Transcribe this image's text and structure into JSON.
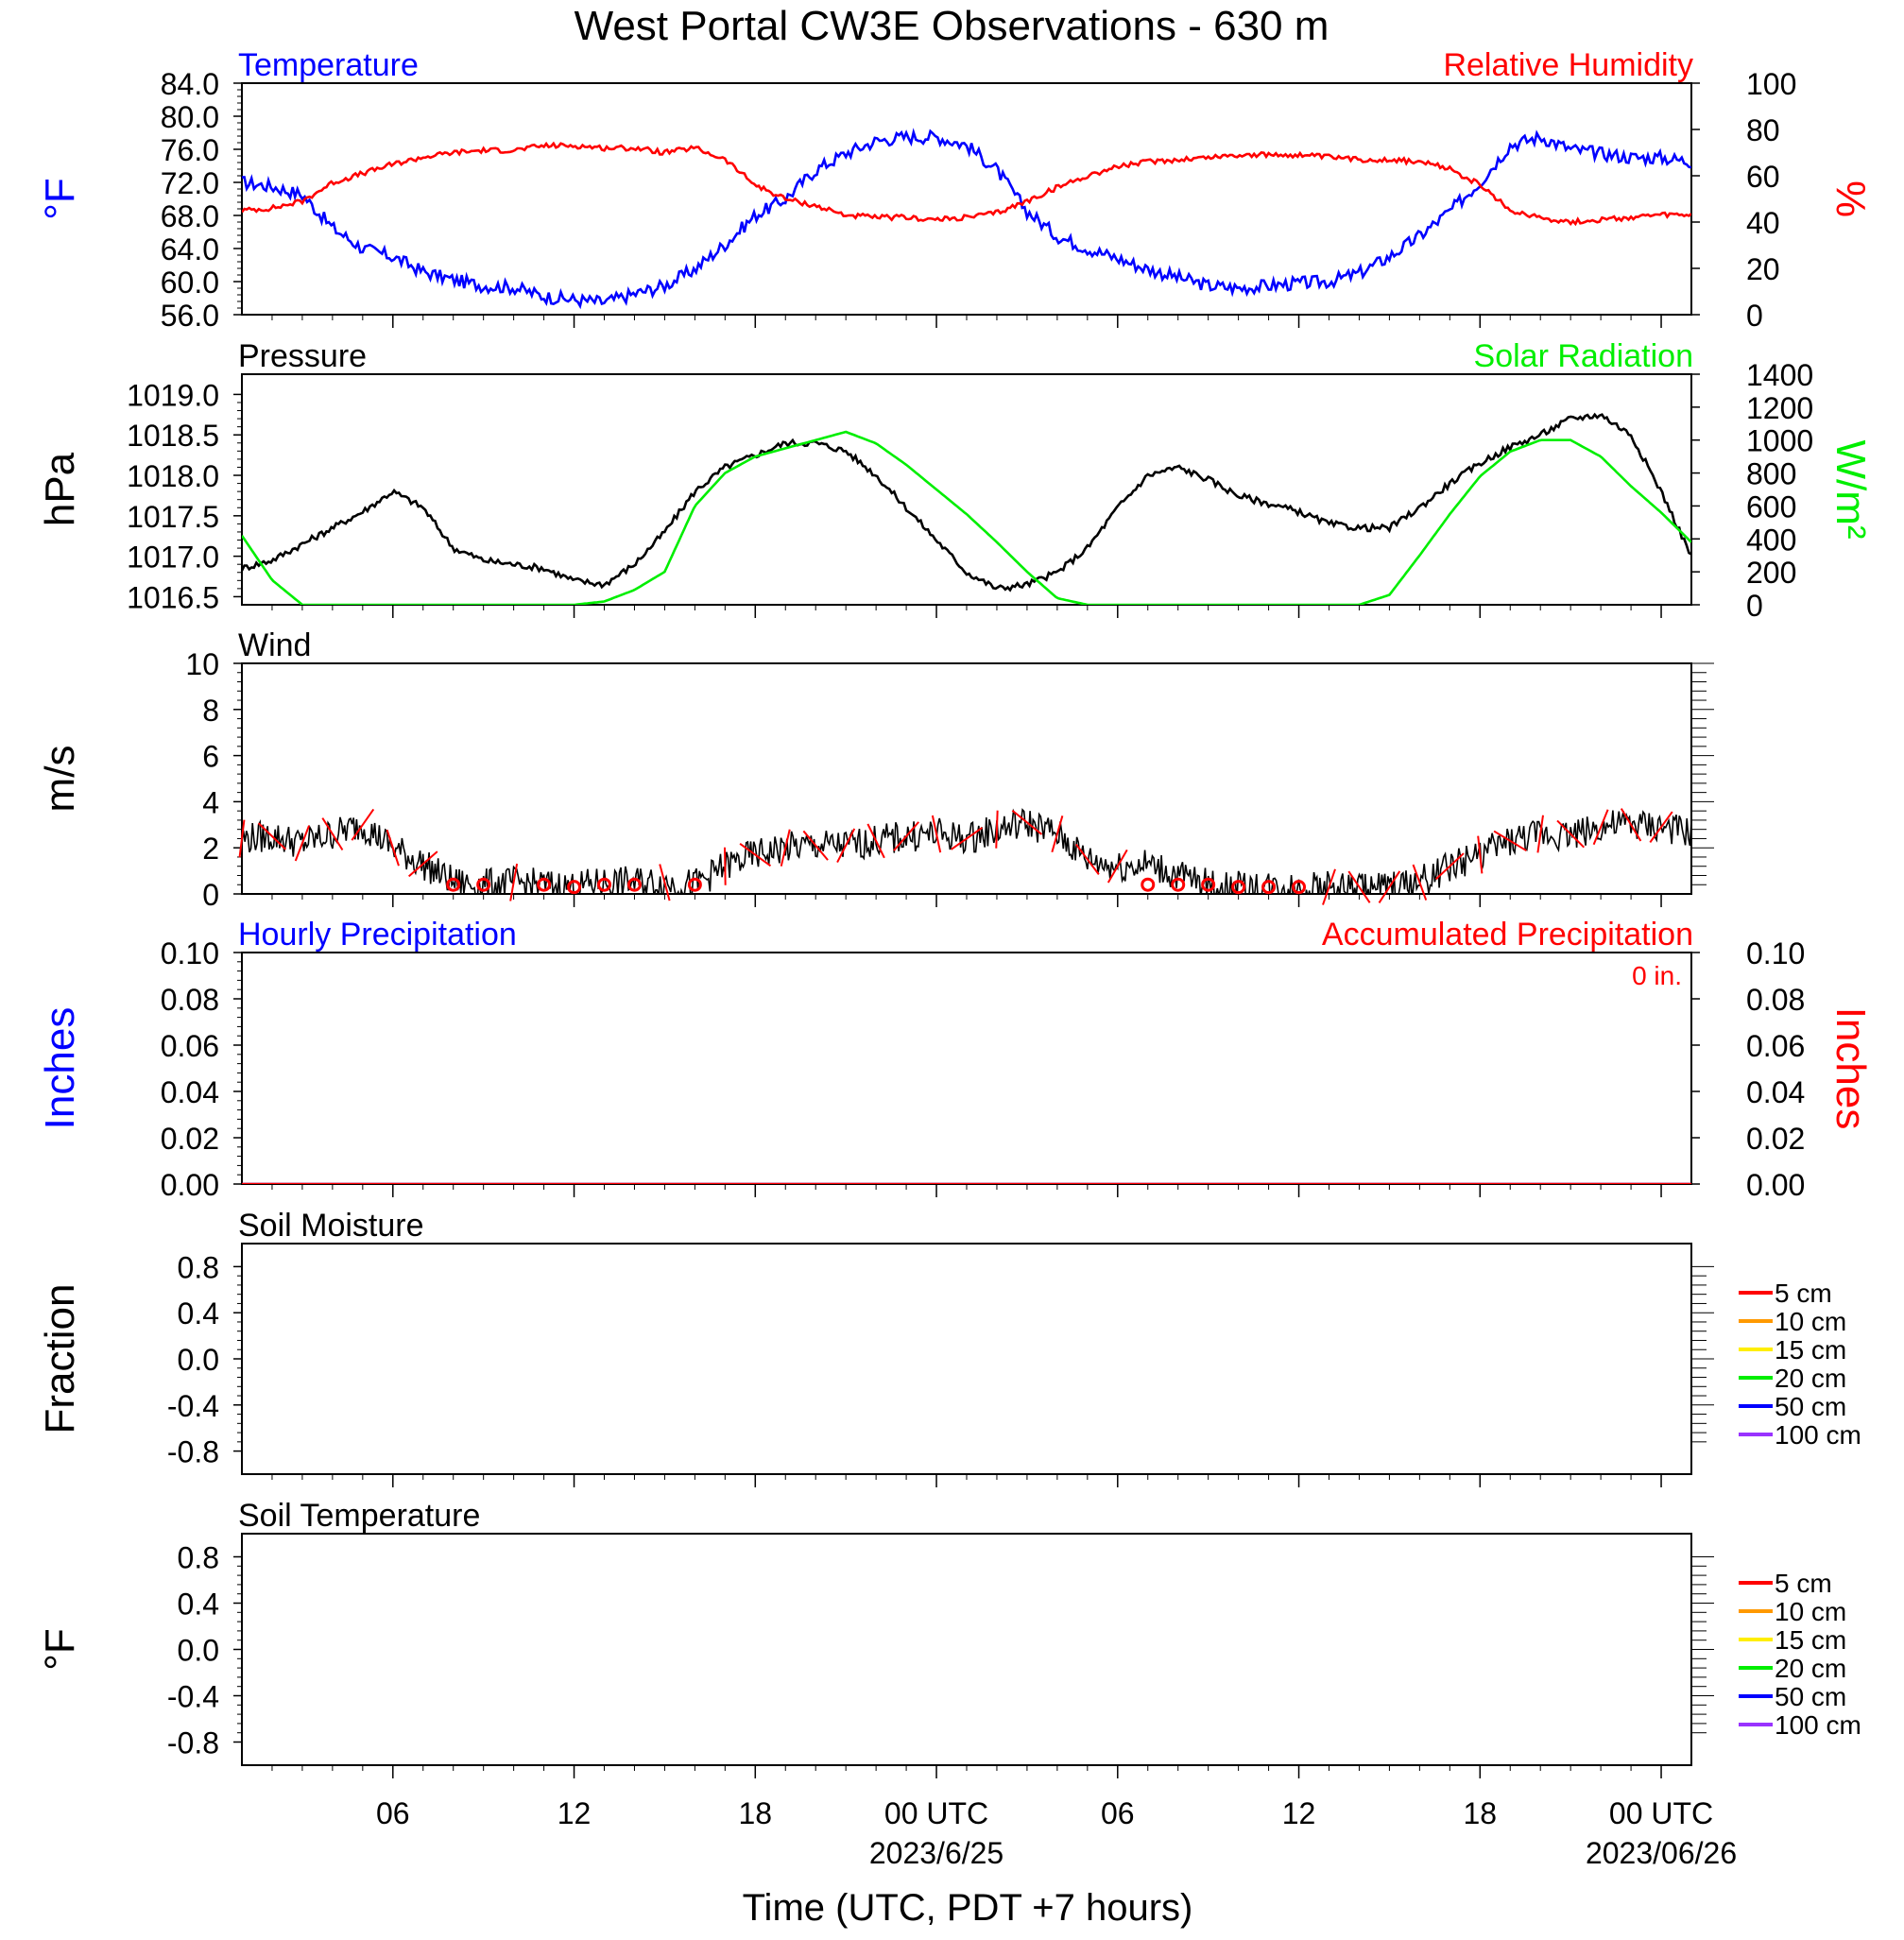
{
  "title": "West Portal CW3E Observations - 630 m",
  "xlabel": "Time (UTC, PDT +7 hours)",
  "x_axis": {
    "tick_hours": [
      6,
      12,
      18,
      24,
      30,
      36,
      42,
      48
    ],
    "tick_labels": [
      "06",
      "12",
      "18",
      "00 UTC",
      "06",
      "12",
      "18",
      "00 UTC"
    ],
    "date_labels": [
      {
        "hour": 24,
        "text": "2023/6/25"
      },
      {
        "hour": 48,
        "text": "2023/06/26"
      }
    ],
    "xlim_hours": [
      1,
      49
    ]
  },
  "colors": {
    "temperature": "#0000ff",
    "humidity": "#ff0000",
    "pressure": "#000000",
    "solar": "#00ee00",
    "wind_speed": "#000000",
    "wind_barb": "#ff0000",
    "hourly_precip": "#0000ff",
    "accum_precip": "#ff0000"
  },
  "chart_data": [
    {
      "id": "temp_rh",
      "type": "line",
      "title_left": "Temperature",
      "title_right": "Relative Humidity",
      "ylabel_left": "°F",
      "ylabel_right": "%",
      "ylim_left": [
        56,
        84
      ],
      "ylim_right": [
        0,
        100
      ],
      "ticks_left": [
        "84.0",
        "80.0",
        "76.0",
        "72.0",
        "68.0",
        "64.0",
        "60.0",
        "56.0"
      ],
      "ticks_right": [
        "100",
        "80",
        "60",
        "40",
        "20",
        "0"
      ],
      "series": [
        {
          "name": "Temperature",
          "axis": "left",
          "x": [
            1,
            2,
            3,
            4,
            5,
            6,
            7,
            8,
            9,
            10,
            11,
            12,
            13,
            14,
            15,
            16,
            17,
            18,
            19,
            20,
            21,
            22,
            23,
            24,
            25,
            26,
            27,
            28,
            29,
            30,
            31,
            32,
            33,
            34,
            35,
            36,
            37,
            38,
            39,
            40,
            41,
            42,
            43,
            44,
            45,
            46,
            47,
            48,
            49
          ],
          "values": [
            72.0,
            71.5,
            70.5,
            66.5,
            64.0,
            63.0,
            61.2,
            60.2,
            59.5,
            59.3,
            58.2,
            57.8,
            57.5,
            58.5,
            59.5,
            61.5,
            64.5,
            68.0,
            70.0,
            73.5,
            75.5,
            77.0,
            77.5,
            77.5,
            76.5,
            73.5,
            68.5,
            65.5,
            64.0,
            62.8,
            61.5,
            60.5,
            59.5,
            59.2,
            59.5,
            59.8,
            60.0,
            61.0,
            63.0,
            65.5,
            68.5,
            72.0,
            76.5,
            77.5,
            76.0,
            75.5,
            75.0,
            75.0,
            74.5
          ]
        },
        {
          "name": "Relative Humidity",
          "axis": "right",
          "x": [
            1,
            2,
            3,
            4,
            5,
            6,
            7,
            8,
            9,
            10,
            11,
            12,
            13,
            14,
            15,
            16,
            17,
            18,
            19,
            20,
            21,
            22,
            23,
            24,
            25,
            26,
            27,
            28,
            29,
            30,
            31,
            32,
            33,
            34,
            35,
            36,
            37,
            38,
            39,
            40,
            41,
            42,
            43,
            44,
            45,
            46,
            47,
            48,
            49
          ],
          "values": [
            45,
            46,
            49,
            57,
            61,
            65,
            68,
            70,
            71,
            71,
            73,
            73,
            72,
            72,
            70,
            72,
            67,
            56,
            50,
            47,
            43,
            42,
            42,
            41,
            42,
            44,
            49,
            55,
            60,
            64,
            66,
            67,
            68,
            69,
            69,
            69,
            68,
            67,
            67,
            66,
            63,
            56,
            45,
            42,
            40,
            41,
            42,
            43,
            43
          ]
        }
      ]
    },
    {
      "id": "pressure_solar",
      "type": "line",
      "title_left": "Pressure",
      "title_right": "Solar Radiation",
      "ylabel_left": "hPa",
      "ylabel_right": "W/m²",
      "ylim_left": [
        1016.4,
        1019.25
      ],
      "ylim_right": [
        0,
        1400
      ],
      "ticks_left": [
        "1019.0",
        "1018.5",
        "1018.0",
        "1017.5",
        "1017.0",
        "1016.5"
      ],
      "ticks_right": [
        "1400",
        "1200",
        "1000",
        "800",
        "600",
        "400",
        "200",
        "0"
      ],
      "series": [
        {
          "name": "Pressure",
          "axis": "left",
          "x": [
            1,
            2,
            3,
            4,
            5,
            6,
            7,
            8,
            9,
            10,
            11,
            12,
            13,
            14,
            15,
            16,
            17,
            18,
            19,
            20,
            21,
            22,
            23,
            24,
            25,
            26,
            27,
            28,
            29,
            30,
            31,
            32,
            33,
            34,
            35,
            36,
            37,
            38,
            39,
            40,
            41,
            42,
            43,
            44,
            45,
            46,
            47,
            48,
            49
          ],
          "values": [
            1016.85,
            1016.95,
            1017.15,
            1017.35,
            1017.55,
            1017.8,
            1017.6,
            1017.1,
            1016.95,
            1016.9,
            1016.85,
            1016.7,
            1016.65,
            1016.9,
            1017.3,
            1017.8,
            1018.1,
            1018.25,
            1018.4,
            1018.4,
            1018.3,
            1018.0,
            1017.6,
            1017.2,
            1016.8,
            1016.6,
            1016.65,
            1016.8,
            1017.1,
            1017.6,
            1018.0,
            1018.1,
            1017.95,
            1017.75,
            1017.65,
            1017.55,
            1017.4,
            1017.35,
            1017.35,
            1017.6,
            1017.9,
            1018.15,
            1018.35,
            1018.5,
            1018.7,
            1018.75,
            1018.5,
            1017.8,
            1017.0
          ]
        },
        {
          "name": "Solar Radiation",
          "axis": "right",
          "x": [
            1,
            2,
            3,
            4,
            5,
            6,
            7,
            8,
            9,
            10,
            11,
            12,
            13,
            14,
            15,
            16,
            17,
            18,
            19,
            20,
            21,
            22,
            23,
            24,
            25,
            26,
            27,
            28,
            29,
            30,
            31,
            32,
            33,
            34,
            35,
            36,
            37,
            38,
            39,
            40,
            41,
            42,
            43,
            44,
            45,
            46,
            47,
            48,
            49
          ],
          "values": [
            420,
            150,
            0,
            0,
            0,
            0,
            0,
            0,
            0,
            0,
            0,
            0,
            20,
            90,
            200,
            600,
            800,
            900,
            950,
            1000,
            1050,
            980,
            850,
            700,
            550,
            380,
            200,
            40,
            0,
            0,
            0,
            0,
            0,
            0,
            0,
            0,
            0,
            0,
            60,
            300,
            550,
            780,
            930,
            1000,
            1000,
            900,
            720,
            560,
            380
          ]
        }
      ]
    },
    {
      "id": "wind",
      "type": "line",
      "title_left": "Wind",
      "ylabel_left": "m/s",
      "ylim_left": [
        0,
        10
      ],
      "ticks_left": [
        "10",
        "8",
        "6",
        "4",
        "2",
        "0"
      ],
      "series": [
        {
          "name": "Wind",
          "axis": "left",
          "x": [
            1,
            2,
            3,
            4,
            5,
            6,
            7,
            8,
            9,
            10,
            11,
            12,
            13,
            14,
            15,
            16,
            17,
            18,
            19,
            20,
            21,
            22,
            23,
            24,
            25,
            26,
            27,
            28,
            29,
            30,
            31,
            32,
            33,
            34,
            35,
            36,
            37,
            38,
            39,
            40,
            41,
            42,
            43,
            44,
            45,
            46,
            47,
            48,
            49
          ],
          "values": [
            2.4,
            2.5,
            2.2,
            2.6,
            3.0,
            2.0,
            1.3,
            0.5,
            0.4,
            0.5,
            0.4,
            0.3,
            0.5,
            0.5,
            0.5,
            0.4,
            1.2,
            1.7,
            2.0,
            2.1,
            2.1,
            2.3,
            2.5,
            2.6,
            2.4,
            2.8,
            3.1,
            2.6,
            1.5,
            1.2,
            1.3,
            0.8,
            0.4,
            0.3,
            0.3,
            0.3,
            0.3,
            0.3,
            0.3,
            0.5,
            1.2,
            1.7,
            2.3,
            2.6,
            2.6,
            2.9,
            3.0,
            2.9,
            2.6
          ]
        }
      ],
      "calm_markers_hours": [
        8,
        9,
        11,
        12,
        13,
        14,
        16,
        31,
        32,
        33,
        34,
        35,
        36
      ]
    },
    {
      "id": "precip",
      "type": "line",
      "title_left": "Hourly Precipitation",
      "title_right": "Accumulated Precipitation",
      "annotation": "0 in.",
      "ylabel_left": "Inches",
      "ylabel_right": "Inches",
      "ylim_left": [
        0,
        0.1
      ],
      "ylim_right": [
        0,
        0.1
      ],
      "ticks_left": [
        "0.10",
        "0.08",
        "0.06",
        "0.04",
        "0.02",
        "0.00"
      ],
      "ticks_right": [
        "0.10",
        "0.08",
        "0.06",
        "0.04",
        "0.02",
        "0.00"
      ],
      "series": [
        {
          "name": "Hourly Precipitation",
          "axis": "left",
          "x": [
            1,
            49
          ],
          "values": [
            0,
            0
          ]
        },
        {
          "name": "Accumulated Precipitation",
          "axis": "right",
          "x": [
            1,
            49
          ],
          "values": [
            0,
            0
          ]
        }
      ]
    },
    {
      "id": "soil_moisture",
      "type": "line",
      "title_left": "Soil Moisture",
      "ylabel_left": "Fraction",
      "ylim_left": [
        -1,
        1
      ],
      "ticks_left": [
        "0.8",
        "0.4",
        "0.0",
        "-0.4",
        "-0.8"
      ],
      "legend": [
        {
          "label": "5 cm",
          "color": "#ff0000"
        },
        {
          "label": "10 cm",
          "color": "#ff9900"
        },
        {
          "label": "15 cm",
          "color": "#ffee00"
        },
        {
          "label": "20 cm",
          "color": "#00ee00"
        },
        {
          "label": "50 cm",
          "color": "#0000ff"
        },
        {
          "label": "100 cm",
          "color": "#9933ff"
        }
      ],
      "series": []
    },
    {
      "id": "soil_temp",
      "type": "line",
      "title_left": "Soil Temperature",
      "ylabel_left": "°F",
      "ylim_left": [
        -1,
        1
      ],
      "ticks_left": [
        "0.8",
        "0.4",
        "0.0",
        "-0.4",
        "-0.8"
      ],
      "legend": [
        {
          "label": "5 cm",
          "color": "#ff0000"
        },
        {
          "label": "10 cm",
          "color": "#ff9900"
        },
        {
          "label": "15 cm",
          "color": "#ffee00"
        },
        {
          "label": "20 cm",
          "color": "#00ee00"
        },
        {
          "label": "50 cm",
          "color": "#0000ff"
        },
        {
          "label": "100 cm",
          "color": "#9933ff"
        }
      ],
      "series": []
    }
  ]
}
